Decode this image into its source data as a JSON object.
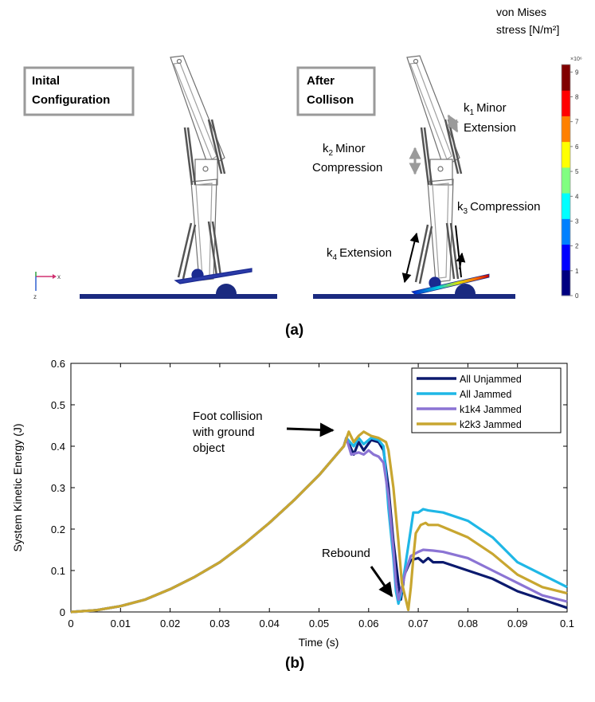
{
  "panel_a": {
    "label": "(a)",
    "box_initial": {
      "line1": "Inital",
      "line2": "Configuration"
    },
    "box_after": {
      "line1": "After",
      "line2": "Collison"
    },
    "annotations": {
      "k1": {
        "sub": "1",
        "text": "Minor",
        "text2": "Extension"
      },
      "k2": {
        "sub": "2",
        "text": "Minor",
        "text2": "Compression"
      },
      "k3": {
        "sub": "3",
        "text": "Compression"
      },
      "k4": {
        "sub": "4",
        "text": "Extension"
      }
    },
    "colorbar": {
      "title_line1": "von Mises",
      "title_line2": "stress [N/m²]",
      "multiplier": "×10⁶",
      "ticks": [
        "0",
        "1",
        "2",
        "3",
        "4",
        "5",
        "6",
        "7",
        "8",
        "9"
      ],
      "colors": [
        "#000080",
        "#0000ff",
        "#0080ff",
        "#00ffff",
        "#80ff80",
        "#ffff00",
        "#ff8000",
        "#ff0000",
        "#800000"
      ]
    },
    "axes_triad": {
      "x": "x",
      "z": "z"
    }
  },
  "panel_b": {
    "label": "(b)",
    "annotations": {
      "collision": [
        "Foot collision",
        "with ground",
        "object"
      ],
      "rebound": "Rebound"
    }
  },
  "chart_data": {
    "type": "line",
    "xlabel": "Time (s)",
    "ylabel": "System Kinetic Energy (J)",
    "xlim": [
      0,
      0.1
    ],
    "ylim": [
      0,
      0.6
    ],
    "xticks": [
      "0",
      "0.01",
      "0.02",
      "0.03",
      "0.04",
      "0.05",
      "0.06",
      "0.07",
      "0.08",
      "0.09",
      "0.1"
    ],
    "yticks": [
      "0",
      "0.1",
      "0.2",
      "0.3",
      "0.4",
      "0.5",
      "0.6"
    ],
    "grid": false,
    "legend_position": "top-right",
    "series": [
      {
        "name": "All Unjammed",
        "color": "#0b1a6e",
        "points": [
          [
            0,
            0
          ],
          [
            0.005,
            0.004
          ],
          [
            0.01,
            0.014
          ],
          [
            0.015,
            0.03
          ],
          [
            0.02,
            0.055
          ],
          [
            0.025,
            0.085
          ],
          [
            0.03,
            0.12
          ],
          [
            0.035,
            0.165
          ],
          [
            0.04,
            0.215
          ],
          [
            0.045,
            0.27
          ],
          [
            0.05,
            0.33
          ],
          [
            0.055,
            0.4
          ],
          [
            0.0555,
            0.42
          ],
          [
            0.057,
            0.38
          ],
          [
            0.058,
            0.41
          ],
          [
            0.059,
            0.39
          ],
          [
            0.0605,
            0.415
          ],
          [
            0.062,
            0.41
          ],
          [
            0.063,
            0.39
          ],
          [
            0.064,
            0.3
          ],
          [
            0.065,
            0.17
          ],
          [
            0.066,
            0.07
          ],
          [
            0.0665,
            0.03
          ],
          [
            0.0672,
            0.09
          ],
          [
            0.0685,
            0.125
          ],
          [
            0.07,
            0.13
          ],
          [
            0.071,
            0.12
          ],
          [
            0.072,
            0.13
          ],
          [
            0.073,
            0.12
          ],
          [
            0.075,
            0.12
          ],
          [
            0.08,
            0.1
          ],
          [
            0.085,
            0.08
          ],
          [
            0.09,
            0.05
          ],
          [
            0.095,
            0.03
          ],
          [
            0.1,
            0.01
          ]
        ]
      },
      {
        "name": "All Jammed",
        "color": "#1fb7e6",
        "points": [
          [
            0,
            0
          ],
          [
            0.005,
            0.004
          ],
          [
            0.01,
            0.014
          ],
          [
            0.015,
            0.03
          ],
          [
            0.02,
            0.055
          ],
          [
            0.025,
            0.085
          ],
          [
            0.03,
            0.12
          ],
          [
            0.035,
            0.165
          ],
          [
            0.04,
            0.215
          ],
          [
            0.045,
            0.27
          ],
          [
            0.05,
            0.33
          ],
          [
            0.055,
            0.4
          ],
          [
            0.0555,
            0.42
          ],
          [
            0.057,
            0.4
          ],
          [
            0.058,
            0.42
          ],
          [
            0.059,
            0.405
          ],
          [
            0.0605,
            0.42
          ],
          [
            0.062,
            0.415
          ],
          [
            0.063,
            0.4
          ],
          [
            0.0635,
            0.33
          ],
          [
            0.064,
            0.25
          ],
          [
            0.065,
            0.13
          ],
          [
            0.0655,
            0.05
          ],
          [
            0.066,
            0.02
          ],
          [
            0.0665,
            0.04
          ],
          [
            0.0675,
            0.12
          ],
          [
            0.0685,
            0.2
          ],
          [
            0.069,
            0.24
          ],
          [
            0.07,
            0.24
          ],
          [
            0.071,
            0.248
          ],
          [
            0.072,
            0.245
          ],
          [
            0.075,
            0.24
          ],
          [
            0.08,
            0.22
          ],
          [
            0.085,
            0.18
          ],
          [
            0.09,
            0.12
          ],
          [
            0.095,
            0.09
          ],
          [
            0.1,
            0.06
          ]
        ]
      },
      {
        "name": "k1k4 Jammed",
        "color": "#8b74d4",
        "points": [
          [
            0,
            0
          ],
          [
            0.005,
            0.004
          ],
          [
            0.01,
            0.014
          ],
          [
            0.015,
            0.03
          ],
          [
            0.02,
            0.055
          ],
          [
            0.025,
            0.085
          ],
          [
            0.03,
            0.12
          ],
          [
            0.035,
            0.165
          ],
          [
            0.04,
            0.215
          ],
          [
            0.045,
            0.27
          ],
          [
            0.05,
            0.33
          ],
          [
            0.055,
            0.4
          ],
          [
            0.0555,
            0.42
          ],
          [
            0.0565,
            0.38
          ],
          [
            0.058,
            0.385
          ],
          [
            0.059,
            0.38
          ],
          [
            0.06,
            0.39
          ],
          [
            0.061,
            0.38
          ],
          [
            0.062,
            0.375
          ],
          [
            0.063,
            0.36
          ],
          [
            0.064,
            0.28
          ],
          [
            0.065,
            0.15
          ],
          [
            0.0655,
            0.07
          ],
          [
            0.066,
            0.03
          ],
          [
            0.0665,
            0.05
          ],
          [
            0.0675,
            0.1
          ],
          [
            0.0685,
            0.135
          ],
          [
            0.07,
            0.145
          ],
          [
            0.071,
            0.15
          ],
          [
            0.073,
            0.148
          ],
          [
            0.075,
            0.145
          ],
          [
            0.08,
            0.13
          ],
          [
            0.085,
            0.1
          ],
          [
            0.09,
            0.07
          ],
          [
            0.095,
            0.04
          ],
          [
            0.1,
            0.025
          ]
        ]
      },
      {
        "name": "k2k3 Jammed",
        "color": "#c8a630",
        "points": [
          [
            0,
            0
          ],
          [
            0.005,
            0.004
          ],
          [
            0.01,
            0.014
          ],
          [
            0.015,
            0.03
          ],
          [
            0.02,
            0.055
          ],
          [
            0.025,
            0.085
          ],
          [
            0.03,
            0.12
          ],
          [
            0.035,
            0.165
          ],
          [
            0.04,
            0.215
          ],
          [
            0.045,
            0.27
          ],
          [
            0.05,
            0.33
          ],
          [
            0.055,
            0.4
          ],
          [
            0.056,
            0.435
          ],
          [
            0.057,
            0.41
          ],
          [
            0.058,
            0.425
          ],
          [
            0.059,
            0.435
          ],
          [
            0.0605,
            0.425
          ],
          [
            0.062,
            0.42
          ],
          [
            0.0635,
            0.41
          ],
          [
            0.064,
            0.39
          ],
          [
            0.065,
            0.3
          ],
          [
            0.066,
            0.17
          ],
          [
            0.0667,
            0.07
          ],
          [
            0.0675,
            0.03
          ],
          [
            0.068,
            0.005
          ],
          [
            0.0685,
            0.06
          ],
          [
            0.069,
            0.13
          ],
          [
            0.0695,
            0.19
          ],
          [
            0.0705,
            0.21
          ],
          [
            0.0715,
            0.215
          ],
          [
            0.072,
            0.21
          ],
          [
            0.074,
            0.21
          ],
          [
            0.075,
            0.205
          ],
          [
            0.08,
            0.18
          ],
          [
            0.085,
            0.14
          ],
          [
            0.09,
            0.09
          ],
          [
            0.095,
            0.06
          ],
          [
            0.1,
            0.045
          ]
        ]
      }
    ]
  }
}
